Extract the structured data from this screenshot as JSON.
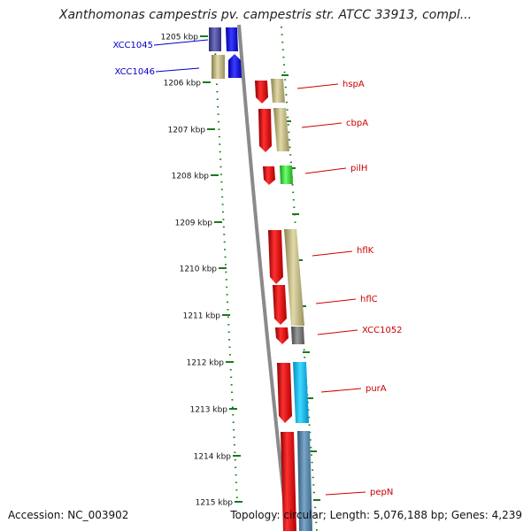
{
  "title": "Xanthomonas campestris pv. campestris str. ATCC 33913, compl...",
  "accession": "Accession: NC_003902",
  "topology": "Topology: circular; Length: 5,076,188 bp; Genes: 4,239",
  "ticks": [
    "1205 kbp",
    "1206 kbp",
    "1207 kbp",
    "1208 kbp",
    "1209 kbp",
    "1210 kbp",
    "1211 kbp",
    "1212 kbp",
    "1213 kbp",
    "1214 kbp",
    "1215 kbp"
  ],
  "colors": {
    "left_label": "#0000cc",
    "right_label": "#cc0000",
    "tick": "#1a7a1a",
    "axis": "#8a8a8a"
  },
  "left_genes": [
    {
      "name": "XCC1045",
      "color": "#0000cc"
    },
    {
      "name": "XCC1046",
      "color": "#0000cc"
    }
  ],
  "right_genes": [
    {
      "name": "hspA"
    },
    {
      "name": "cbpA"
    },
    {
      "name": "pilH"
    },
    {
      "name": "hflK"
    },
    {
      "name": "hflC"
    },
    {
      "name": "XCC1052"
    },
    {
      "name": "purA"
    },
    {
      "name": "pepN"
    }
  ]
}
